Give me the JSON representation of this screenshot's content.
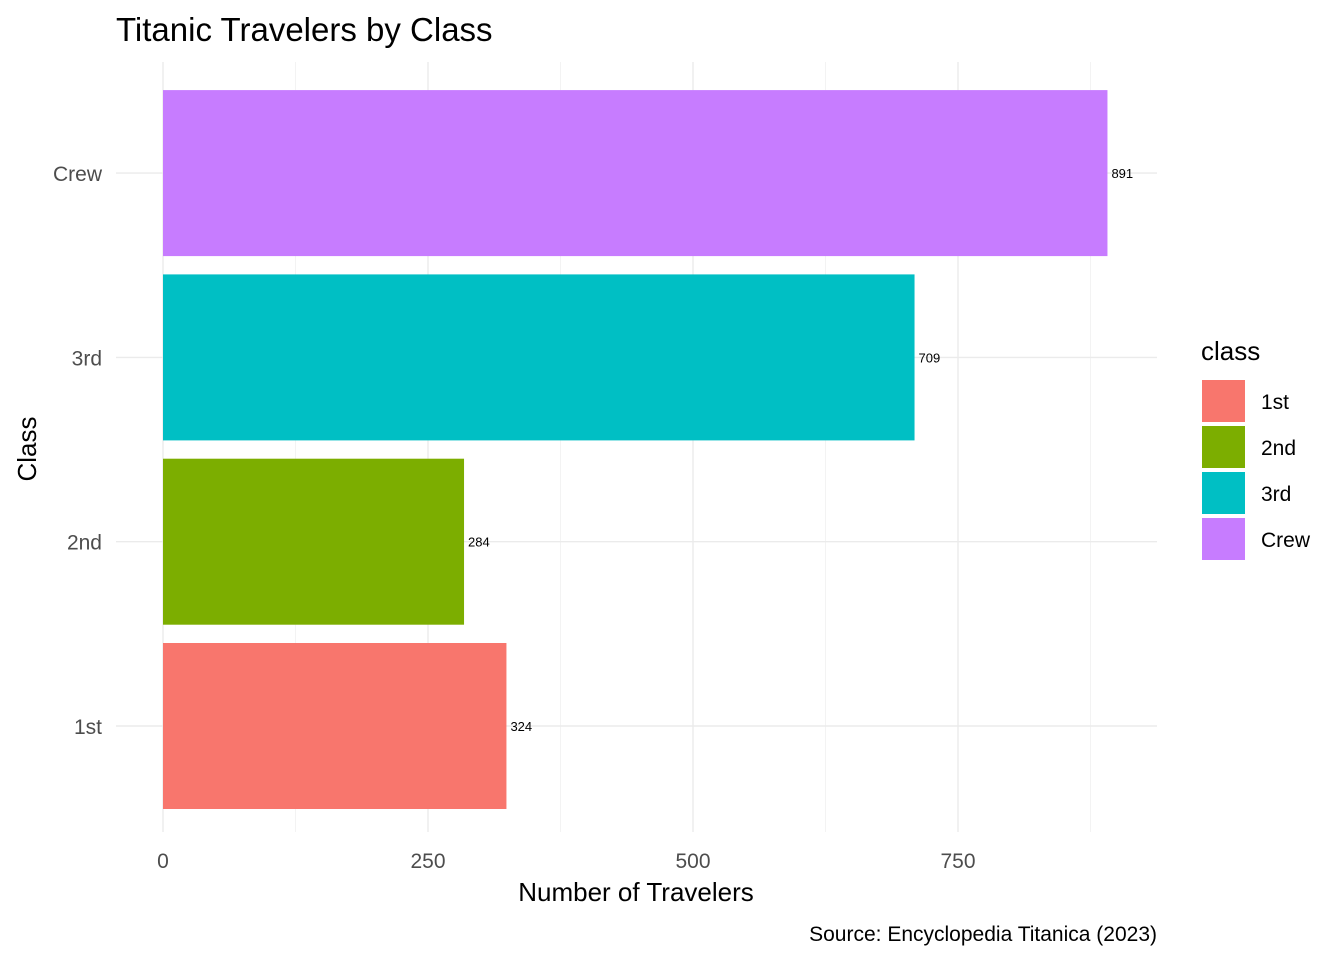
{
  "chart_data": {
    "type": "bar",
    "orientation": "horizontal",
    "title": "Titanic Travelers by Class",
    "xlabel": "Number of Travelers",
    "ylabel": "Class",
    "caption": "Source: Encyclopedia Titanica (2023)",
    "categories": [
      "1st",
      "2nd",
      "3rd",
      "Crew"
    ],
    "values": [
      324,
      284,
      709,
      891
    ],
    "colors": [
      "#F8766D",
      "#7CAE00",
      "#00BFC4",
      "#C77CFF"
    ],
    "xlim": [
      0,
      935
    ],
    "xticks": [
      0,
      250,
      500,
      750
    ],
    "grid": true,
    "legend": {
      "title": "class",
      "position": "right",
      "entries": [
        "1st",
        "2nd",
        "3rd",
        "Crew"
      ]
    }
  }
}
